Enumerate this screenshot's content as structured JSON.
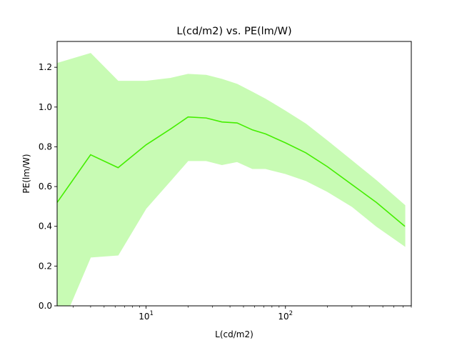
{
  "chart_data": {
    "type": "line",
    "title": "L(cd/m2) vs. PE(lm/W)",
    "xlabel": "L(cd/m2)",
    "ylabel": "PE(lm/W)",
    "x_scale": "log",
    "xlim": [
      2.3,
      800
    ],
    "ylim": [
      0,
      1.33
    ],
    "x_ticks": [
      {
        "value": 10,
        "base": "10",
        "exp": "1"
      },
      {
        "value": 100,
        "base": "10",
        "exp": "2"
      }
    ],
    "y_ticks": [
      {
        "value": 0.0,
        "label": "0.0"
      },
      {
        "value": 0.2,
        "label": "0.2"
      },
      {
        "value": 0.4,
        "label": "0.4"
      },
      {
        "value": 0.6,
        "label": "0.6"
      },
      {
        "value": 0.8,
        "label": "0.8"
      },
      {
        "value": 1.0,
        "label": "1.0"
      },
      {
        "value": 1.2,
        "label": "1.2"
      }
    ],
    "grid": false,
    "legend": "none",
    "line_color": "#44ee00",
    "band_color": "#c8fbb4",
    "series": [
      {
        "x": [
          2.3,
          4.0,
          6.3,
          10,
          15,
          20,
          27,
          35,
          45,
          58,
          72,
          100,
          140,
          200,
          300,
          450,
          720
        ],
        "y": [
          0.52,
          0.76,
          0.695,
          0.81,
          0.89,
          0.95,
          0.945,
          0.925,
          0.92,
          0.885,
          0.865,
          0.82,
          0.77,
          0.7,
          0.61,
          0.52,
          0.4
        ],
        "upper": [
          1.22,
          1.27,
          1.13,
          1.13,
          1.145,
          1.165,
          1.16,
          1.14,
          1.115,
          1.075,
          1.04,
          0.98,
          0.915,
          0.83,
          0.73,
          0.63,
          0.505
        ],
        "lower": [
          -0.15,
          0.245,
          0.255,
          0.49,
          0.63,
          0.73,
          0.73,
          0.71,
          0.725,
          0.69,
          0.69,
          0.665,
          0.63,
          0.575,
          0.5,
          0.4,
          0.3
        ]
      }
    ]
  }
}
